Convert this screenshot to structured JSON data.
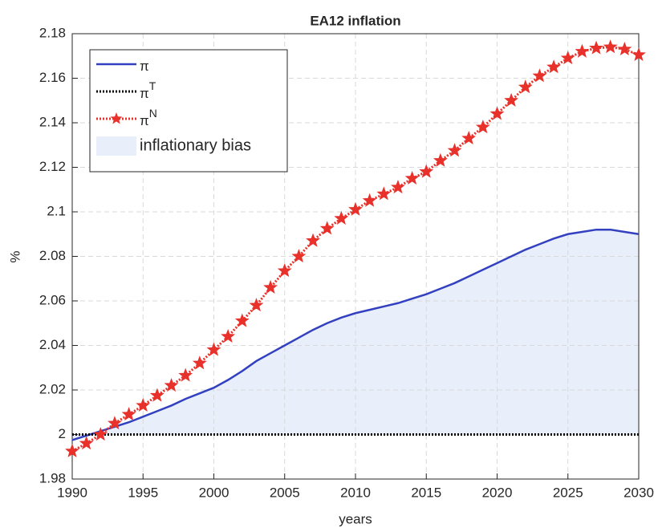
{
  "chart_data": {
    "type": "line",
    "title": "EA12 inflation",
    "xlabel": "years",
    "ylabel": "%",
    "x": [
      1990,
      1991,
      1992,
      1993,
      1994,
      1995,
      1996,
      1997,
      1998,
      1999,
      2000,
      2001,
      2002,
      2003,
      2004,
      2005,
      2006,
      2007,
      2008,
      2009,
      2010,
      2011,
      2012,
      2013,
      2014,
      2015,
      2016,
      2017,
      2018,
      2019,
      2020,
      2021,
      2022,
      2023,
      2024,
      2025,
      2026,
      2027,
      2028,
      2029,
      2030
    ],
    "series": [
      {
        "name": "π",
        "color": "#3340c0",
        "style": "solid",
        "values": [
          1.9975,
          1.9995,
          2.0015,
          2.0035,
          2.0055,
          2.008,
          2.0105,
          2.013,
          2.016,
          2.0185,
          2.021,
          2.0245,
          2.0285,
          2.033,
          2.0365,
          2.04,
          2.0435,
          2.047,
          2.05,
          2.0525,
          2.0545,
          2.056,
          2.0575,
          2.059,
          2.061,
          2.063,
          2.0655,
          2.068,
          2.071,
          2.074,
          2.077,
          2.08,
          2.083,
          2.0855,
          2.088,
          2.09,
          2.091,
          2.092,
          2.092,
          2.091,
          2.09
        ]
      },
      {
        "name": "π",
        "name_sup": "T",
        "color": "#000000",
        "style": "dotted",
        "values": [
          2,
          2,
          2,
          2,
          2,
          2,
          2,
          2,
          2,
          2,
          2,
          2,
          2,
          2,
          2,
          2,
          2,
          2,
          2,
          2,
          2,
          2,
          2,
          2,
          2,
          2,
          2,
          2,
          2,
          2,
          2,
          2,
          2,
          2,
          2,
          2,
          2,
          2,
          2,
          2,
          2
        ]
      },
      {
        "name": "π",
        "name_sup": "N",
        "color": "#e8312a",
        "style": "dotted",
        "marker": "star",
        "values": [
          1.9925,
          1.996,
          2,
          2.005,
          2.009,
          2.013,
          2.0175,
          2.022,
          2.0265,
          2.032,
          2.038,
          2.044,
          2.051,
          2.058,
          2.066,
          2.0735,
          2.08,
          2.087,
          2.0925,
          2.097,
          2.101,
          2.105,
          2.108,
          2.111,
          2.115,
          2.118,
          2.123,
          2.1275,
          2.133,
          2.138,
          2.144,
          2.15,
          2.156,
          2.161,
          2.165,
          2.169,
          2.172,
          2.1735,
          2.174,
          2.173,
          2.1705
        ]
      }
    ],
    "fill": {
      "name": "inflationary bias",
      "color": "#e8effa"
    },
    "xlim": [
      1990,
      2030
    ],
    "xticks": [
      1990,
      1995,
      2000,
      2005,
      2010,
      2015,
      2020,
      2025,
      2030
    ],
    "ylim": [
      1.98,
      2.18
    ],
    "yticks": [
      1.98,
      2,
      2.02,
      2.04,
      2.06,
      2.08,
      2.1,
      2.12,
      2.14,
      2.16,
      2.18
    ],
    "grid": true,
    "legend": "upper left"
  }
}
